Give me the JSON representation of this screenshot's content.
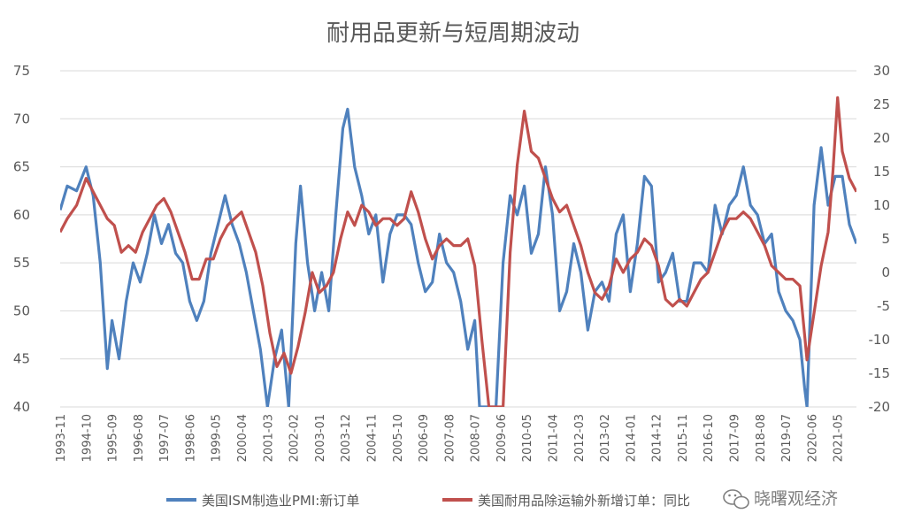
{
  "chart_data": {
    "type": "line",
    "title": "耐用品更新与短周期波动",
    "grid": true,
    "legend_position": "bottom",
    "y_left": {
      "ylim": [
        40,
        75
      ],
      "ticks": [
        "40",
        "45",
        "50",
        "55",
        "60",
        "65",
        "70",
        "75"
      ]
    },
    "y_right": {
      "ylim": [
        -20,
        30
      ],
      "ticks": [
        "-20",
        "-15",
        "-10",
        "-5",
        "0",
        "5",
        "10",
        "15",
        "20",
        "25",
        "30"
      ]
    },
    "x_range": [
      "1993-11",
      "2022-01"
    ],
    "x_tick_labels": [
      "1993-11",
      "1994-10",
      "1995-09",
      "1996-08",
      "1997-07",
      "1998-06",
      "1999-05",
      "2000-04",
      "2001-03",
      "2002-02",
      "2003-01",
      "2003-12",
      "2004-11",
      "2005-10",
      "2006-09",
      "2007-08",
      "2008-07",
      "2009-06",
      "2010-05",
      "2011-04",
      "2012-03",
      "2013-02",
      "2014-01",
      "2014-12",
      "2015-11",
      "2016-10",
      "2017-09",
      "2018-08",
      "2019-07",
      "2020-06",
      "2021-05"
    ],
    "series": [
      {
        "name": "美国ISM制造业PMI:新订单",
        "axis": "left",
        "color": "#4f81bd",
        "points": [
          [
            "1993-11",
            60.5
          ],
          [
            "1994-02",
            63.0
          ],
          [
            "1994-06",
            62.5
          ],
          [
            "1994-10",
            65.0
          ],
          [
            "1995-01",
            62.0
          ],
          [
            "1995-04",
            55.0
          ],
          [
            "1995-07",
            44.0
          ],
          [
            "1995-09",
            49.0
          ],
          [
            "1995-12",
            45.0
          ],
          [
            "1996-03",
            51.0
          ],
          [
            "1996-06",
            55.0
          ],
          [
            "1996-09",
            53.0
          ],
          [
            "1996-12",
            56.0
          ],
          [
            "1997-03",
            60.0
          ],
          [
            "1997-06",
            57.0
          ],
          [
            "1997-09",
            59.0
          ],
          [
            "1997-12",
            56.0
          ],
          [
            "1998-03",
            55.0
          ],
          [
            "1998-06",
            51.0
          ],
          [
            "1998-09",
            49.0
          ],
          [
            "1998-12",
            51.0
          ],
          [
            "1999-03",
            56.0
          ],
          [
            "1999-06",
            59.0
          ],
          [
            "1999-09",
            62.0
          ],
          [
            "1999-12",
            59.0
          ],
          [
            "2000-03",
            57.0
          ],
          [
            "2000-06",
            54.0
          ],
          [
            "2000-09",
            50.0
          ],
          [
            "2000-12",
            46.0
          ],
          [
            "2001-03",
            40.0
          ],
          [
            "2001-06",
            45.0
          ],
          [
            "2001-09",
            48.0
          ],
          [
            "2001-12",
            40.0
          ],
          [
            "2002-03",
            57.0
          ],
          [
            "2002-05",
            63.0
          ],
          [
            "2002-08",
            55.0
          ],
          [
            "2002-11",
            50.0
          ],
          [
            "2003-02",
            54.0
          ],
          [
            "2003-05",
            50.0
          ],
          [
            "2003-08",
            60.0
          ],
          [
            "2003-11",
            69.0
          ],
          [
            "2004-01",
            71.0
          ],
          [
            "2004-04",
            65.0
          ],
          [
            "2004-07",
            62.0
          ],
          [
            "2004-10",
            58.0
          ],
          [
            "2005-01",
            60.0
          ],
          [
            "2005-04",
            53.0
          ],
          [
            "2005-07",
            58.0
          ],
          [
            "2005-10",
            60.0
          ],
          [
            "2006-01",
            60.0
          ],
          [
            "2006-04",
            59.0
          ],
          [
            "2006-07",
            55.0
          ],
          [
            "2006-10",
            52.0
          ],
          [
            "2007-01",
            53.0
          ],
          [
            "2007-04",
            58.0
          ],
          [
            "2007-07",
            55.0
          ],
          [
            "2007-10",
            54.0
          ],
          [
            "2008-01",
            51.0
          ],
          [
            "2008-04",
            46.0
          ],
          [
            "2008-07",
            49.0
          ],
          [
            "2008-09",
            40.0
          ],
          [
            "2009-04",
            40.0
          ],
          [
            "2009-07",
            55.0
          ],
          [
            "2009-10",
            62.0
          ],
          [
            "2010-01",
            60.0
          ],
          [
            "2010-04",
            63.0
          ],
          [
            "2010-07",
            56.0
          ],
          [
            "2010-10",
            58.0
          ],
          [
            "2011-01",
            65.0
          ],
          [
            "2011-04",
            60.0
          ],
          [
            "2011-07",
            50.0
          ],
          [
            "2011-10",
            52.0
          ],
          [
            "2012-01",
            57.0
          ],
          [
            "2012-04",
            54.0
          ],
          [
            "2012-07",
            48.0
          ],
          [
            "2012-10",
            52.0
          ],
          [
            "2013-01",
            53.0
          ],
          [
            "2013-04",
            51.0
          ],
          [
            "2013-07",
            58.0
          ],
          [
            "2013-10",
            60.0
          ],
          [
            "2014-01",
            52.0
          ],
          [
            "2014-04",
            57.0
          ],
          [
            "2014-07",
            64.0
          ],
          [
            "2014-10",
            63.0
          ],
          [
            "2015-01",
            53.0
          ],
          [
            "2015-04",
            54.0
          ],
          [
            "2015-07",
            56.0
          ],
          [
            "2015-10",
            51.0
          ],
          [
            "2016-01",
            51.0
          ],
          [
            "2016-04",
            55.0
          ],
          [
            "2016-07",
            55.0
          ],
          [
            "2016-10",
            54.0
          ],
          [
            "2017-01",
            61.0
          ],
          [
            "2017-04",
            58.0
          ],
          [
            "2017-07",
            61.0
          ],
          [
            "2017-10",
            62.0
          ],
          [
            "2018-01",
            65.0
          ],
          [
            "2018-04",
            61.0
          ],
          [
            "2018-07",
            60.0
          ],
          [
            "2018-10",
            57.0
          ],
          [
            "2019-01",
            58.0
          ],
          [
            "2019-04",
            52.0
          ],
          [
            "2019-07",
            50.0
          ],
          [
            "2019-10",
            49.0
          ],
          [
            "2020-01",
            47.0
          ],
          [
            "2020-03",
            42.0
          ],
          [
            "2020-04",
            40.0
          ],
          [
            "2020-07",
            61.0
          ],
          [
            "2020-10",
            67.0
          ],
          [
            "2021-01",
            61.0
          ],
          [
            "2021-04",
            64.0
          ],
          [
            "2021-07",
            64.0
          ],
          [
            "2021-10",
            59.0
          ],
          [
            "2022-01",
            57.0
          ]
        ]
      },
      {
        "name": "美国耐用品除运输外新增订单：同比",
        "axis": "right",
        "color": "#c0504d",
        "points": [
          [
            "1993-11",
            6.0
          ],
          [
            "1994-02",
            8.0
          ],
          [
            "1994-06",
            10.0
          ],
          [
            "1994-10",
            14.0
          ],
          [
            "1995-01",
            12.0
          ],
          [
            "1995-04",
            10.0
          ],
          [
            "1995-07",
            8.0
          ],
          [
            "1995-10",
            7.0
          ],
          [
            "1996-01",
            3.0
          ],
          [
            "1996-04",
            4.0
          ],
          [
            "1996-07",
            3.0
          ],
          [
            "1996-10",
            6.0
          ],
          [
            "1997-01",
            8.0
          ],
          [
            "1997-04",
            10.0
          ],
          [
            "1997-07",
            11.0
          ],
          [
            "1997-10",
            9.0
          ],
          [
            "1998-01",
            6.0
          ],
          [
            "1998-04",
            3.0
          ],
          [
            "1998-07",
            -1.0
          ],
          [
            "1998-10",
            -1.0
          ],
          [
            "1999-01",
            2.0
          ],
          [
            "1999-04",
            2.0
          ],
          [
            "1999-07",
            5.0
          ],
          [
            "1999-10",
            7.0
          ],
          [
            "2000-01",
            8.0
          ],
          [
            "2000-04",
            9.0
          ],
          [
            "2000-07",
            6.0
          ],
          [
            "2000-10",
            3.0
          ],
          [
            "2001-01",
            -2.0
          ],
          [
            "2001-04",
            -9.0
          ],
          [
            "2001-07",
            -14.0
          ],
          [
            "2001-10",
            -12.0
          ],
          [
            "2002-01",
            -15.0
          ],
          [
            "2002-04",
            -11.0
          ],
          [
            "2002-07",
            -6.0
          ],
          [
            "2002-10",
            0.0
          ],
          [
            "2003-01",
            -3.0
          ],
          [
            "2003-04",
            -2.0
          ],
          [
            "2003-07",
            0.0
          ],
          [
            "2003-10",
            5.0
          ],
          [
            "2004-01",
            9.0
          ],
          [
            "2004-04",
            7.0
          ],
          [
            "2004-07",
            10.0
          ],
          [
            "2004-10",
            9.0
          ],
          [
            "2005-01",
            7.0
          ],
          [
            "2005-04",
            8.0
          ],
          [
            "2005-07",
            8.0
          ],
          [
            "2005-10",
            7.0
          ],
          [
            "2006-01",
            8.0
          ],
          [
            "2006-04",
            12.0
          ],
          [
            "2006-07",
            9.0
          ],
          [
            "2006-10",
            5.0
          ],
          [
            "2007-01",
            2.0
          ],
          [
            "2007-04",
            4.0
          ],
          [
            "2007-07",
            5.0
          ],
          [
            "2007-10",
            4.0
          ],
          [
            "2008-01",
            4.0
          ],
          [
            "2008-04",
            5.0
          ],
          [
            "2008-07",
            1.0
          ],
          [
            "2008-10",
            -10.0
          ],
          [
            "2009-01",
            -20.0
          ],
          [
            "2009-07",
            -20.0
          ],
          [
            "2009-10",
            3.0
          ],
          [
            "2010-01",
            16.0
          ],
          [
            "2010-04",
            24.0
          ],
          [
            "2010-07",
            18.0
          ],
          [
            "2010-10",
            17.0
          ],
          [
            "2011-01",
            14.0
          ],
          [
            "2011-04",
            11.0
          ],
          [
            "2011-07",
            9.0
          ],
          [
            "2011-10",
            10.0
          ],
          [
            "2012-01",
            7.0
          ],
          [
            "2012-04",
            4.0
          ],
          [
            "2012-07",
            0.0
          ],
          [
            "2012-10",
            -3.0
          ],
          [
            "2013-01",
            -4.0
          ],
          [
            "2013-04",
            -2.0
          ],
          [
            "2013-07",
            2.0
          ],
          [
            "2013-10",
            0.0
          ],
          [
            "2014-01",
            2.0
          ],
          [
            "2014-04",
            3.0
          ],
          [
            "2014-07",
            5.0
          ],
          [
            "2014-10",
            4.0
          ],
          [
            "2015-01",
            1.0
          ],
          [
            "2015-04",
            -4.0
          ],
          [
            "2015-07",
            -5.0
          ],
          [
            "2015-10",
            -4.0
          ],
          [
            "2016-01",
            -5.0
          ],
          [
            "2016-04",
            -3.0
          ],
          [
            "2016-07",
            -1.0
          ],
          [
            "2016-10",
            0.0
          ],
          [
            "2017-01",
            3.0
          ],
          [
            "2017-04",
            6.0
          ],
          [
            "2017-07",
            8.0
          ],
          [
            "2017-10",
            8.0
          ],
          [
            "2018-01",
            9.0
          ],
          [
            "2018-04",
            8.0
          ],
          [
            "2018-07",
            6.0
          ],
          [
            "2018-10",
            4.0
          ],
          [
            "2019-01",
            1.0
          ],
          [
            "2019-04",
            0.0
          ],
          [
            "2019-07",
            -1.0
          ],
          [
            "2019-10",
            -1.0
          ],
          [
            "2020-01",
            -2.0
          ],
          [
            "2020-04",
            -13.0
          ],
          [
            "2020-07",
            -6.0
          ],
          [
            "2020-10",
            1.0
          ],
          [
            "2021-01",
            6.0
          ],
          [
            "2021-03",
            15.0
          ],
          [
            "2021-05",
            26.0
          ],
          [
            "2021-07",
            18.0
          ],
          [
            "2021-10",
            14.0
          ],
          [
            "2022-01",
            12.0
          ]
        ]
      }
    ]
  },
  "watermark": "晓曙观经济",
  "watermark_icon": "wechat-icon"
}
